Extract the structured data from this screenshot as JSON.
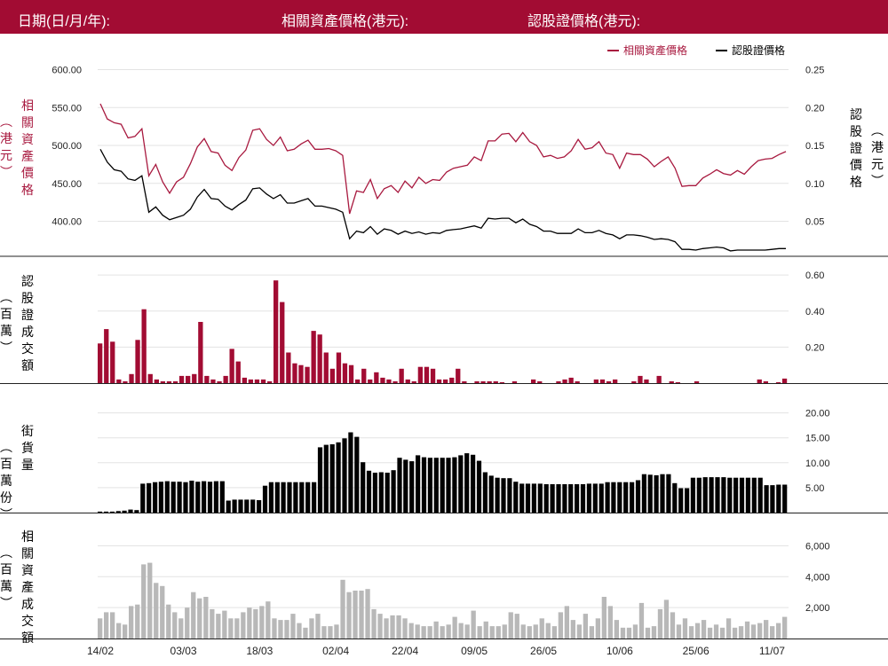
{
  "header": {
    "date_label": "日期(日/月/年):",
    "underlying_label": "相關資產價格(港元):",
    "warrant_label": "認股證價格(港元):"
  },
  "colors": {
    "brand": "#a20c33",
    "underlying": "#a8193f",
    "warrant": "#000000",
    "asset_turnover": "#b8b8b8",
    "grid": "#e3e3e3"
  },
  "chart_data": [
    {
      "type": "line",
      "panel": "price",
      "legend_position": "top-right",
      "grid": true,
      "x_tick_labels": [
        "14/02",
        "03/03",
        "18/03",
        "02/04",
        "22/04",
        "09/05",
        "26/05",
        "10/06",
        "25/06",
        "11/07"
      ],
      "x_tick_index": [
        0,
        12,
        23,
        34,
        44,
        54,
        64,
        75,
        86,
        97
      ],
      "series": [
        {
          "name": "相關資產價格",
          "axis": "left",
          "ylabel_chars": [
            "相",
            "關",
            "資",
            "產",
            "價",
            "格"
          ],
          "ylabel_unit": "︵港元︶",
          "ytick_labels": [
            "600.00",
            "550.00",
            "500.00",
            "450.00",
            "400.00"
          ],
          "ytick_values": [
            600,
            550,
            500,
            450,
            400
          ],
          "ylim": [
            355,
            610
          ],
          "values": [
            555,
            535,
            530,
            528,
            510,
            512,
            522,
            460,
            475,
            452,
            437,
            452,
            458,
            476,
            498,
            509,
            492,
            490,
            474,
            467,
            484,
            494,
            520,
            522,
            508,
            500,
            511,
            493,
            495,
            502,
            507,
            495,
            495,
            496,
            493,
            487,
            410,
            440,
            438,
            455,
            430,
            443,
            447,
            438,
            453,
            444,
            458,
            450,
            455,
            454,
            465,
            470,
            472,
            474,
            485,
            480,
            506,
            506,
            515,
            516,
            505,
            517,
            505,
            500,
            485,
            487,
            483,
            485,
            493,
            508,
            495,
            497,
            505,
            490,
            488,
            470,
            490,
            488,
            488,
            482,
            472,
            479,
            485,
            470,
            446,
            447,
            447,
            457,
            462,
            468,
            463,
            461,
            467,
            462,
            472,
            480,
            482,
            483,
            488,
            492
          ]
        },
        {
          "name": "認股證價格",
          "axis": "right",
          "ylabel_chars": [
            "認",
            "股",
            "證",
            "價",
            "格"
          ],
          "ylabel_unit": "︵港元︶",
          "ytick_labels": [
            "0.25",
            "0.20",
            "0.15",
            "0.10",
            "0.05"
          ],
          "ytick_values": [
            0.25,
            0.2,
            0.15,
            0.1,
            0.05
          ],
          "ylim": [
            0.005,
            0.26
          ],
          "values": [
            0.145,
            0.128,
            0.118,
            0.116,
            0.106,
            0.104,
            0.11,
            0.062,
            0.069,
            0.058,
            0.052,
            0.055,
            0.058,
            0.066,
            0.082,
            0.092,
            0.08,
            0.079,
            0.07,
            0.065,
            0.072,
            0.078,
            0.093,
            0.094,
            0.086,
            0.08,
            0.085,
            0.074,
            0.074,
            0.077,
            0.08,
            0.07,
            0.07,
            0.068,
            0.066,
            0.062,
            0.027,
            0.037,
            0.035,
            0.043,
            0.033,
            0.04,
            0.038,
            0.033,
            0.037,
            0.034,
            0.036,
            0.033,
            0.035,
            0.034,
            0.038,
            0.039,
            0.04,
            0.042,
            0.044,
            0.041,
            0.054,
            0.053,
            0.054,
            0.054,
            0.048,
            0.053,
            0.046,
            0.043,
            0.037,
            0.037,
            0.034,
            0.034,
            0.034,
            0.04,
            0.035,
            0.035,
            0.038,
            0.034,
            0.032,
            0.027,
            0.032,
            0.032,
            0.031,
            0.029,
            0.026,
            0.027,
            0.026,
            0.023,
            0.013,
            0.013,
            0.012,
            0.014,
            0.015,
            0.016,
            0.015,
            0.011,
            0.012,
            0.012,
            0.012,
            0.012,
            0.012,
            0.013,
            0.014,
            0.014
          ]
        }
      ]
    },
    {
      "type": "bar",
      "panel": "warrant_turnover",
      "grid": true,
      "ylabel_chars": [
        "認",
        "股",
        "證",
        "成",
        "交",
        "額"
      ],
      "ylabel_unit": "︵百萬︶",
      "ytick_labels": [
        "0.60",
        "0.40",
        "0.20"
      ],
      "ytick_values": [
        0.6,
        0.4,
        0.2
      ],
      "ylim": [
        0,
        0.65
      ],
      "values": [
        0.22,
        0.3,
        0.23,
        0.02,
        0.01,
        0.05,
        0.24,
        0.41,
        0.05,
        0.02,
        0.01,
        0.01,
        0.01,
        0.04,
        0.04,
        0.05,
        0.34,
        0.04,
        0.02,
        0.01,
        0.04,
        0.19,
        0.12,
        0.03,
        0.02,
        0.02,
        0.02,
        0.01,
        0.57,
        0.45,
        0.17,
        0.11,
        0.1,
        0.09,
        0.29,
        0.27,
        0.17,
        0.08,
        0.17,
        0.11,
        0.1,
        0.02,
        0.08,
        0.02,
        0.06,
        0.03,
        0.02,
        0.01,
        0.08,
        0.02,
        0.01,
        0.09,
        0.09,
        0.08,
        0.02,
        0.02,
        0.03,
        0.08,
        0.01,
        0.0,
        0.01,
        0.01,
        0.01,
        0.01,
        0.005,
        0.0,
        0.01,
        0.0,
        0.0,
        0.02,
        0.01,
        0.0,
        0.0,
        0.01,
        0.02,
        0.03,
        0.01,
        0.0,
        0.0,
        0.02,
        0.02,
        0.01,
        0.02,
        0.0,
        0.0,
        0.01,
        0.04,
        0.02,
        0.0,
        0.04,
        0.0,
        0.01,
        0.005,
        0.0,
        0.0,
        0.01,
        0.0,
        0.0,
        0.0,
        0.0,
        0.0,
        0.0,
        0.0,
        0.0,
        0.0,
        0.02,
        0.01,
        0.0,
        0.005,
        0.025
      ]
    },
    {
      "type": "bar",
      "panel": "outstanding",
      "grid": true,
      "ylabel_chars": [
        "街",
        "貨",
        "量"
      ],
      "ylabel_unit": "︵百萬份︶",
      "ytick_labels": [
        "20.00",
        "15.00",
        "10.00",
        "5.00"
      ],
      "ytick_values": [
        20,
        15,
        10,
        5
      ],
      "ylim": [
        0,
        21
      ],
      "values": [
        0.2,
        0.2,
        0.2,
        0.3,
        0.4,
        0.6,
        0.5,
        5.8,
        5.9,
        6.1,
        6.2,
        6.3,
        6.2,
        6.2,
        6.1,
        6.4,
        6.2,
        6.3,
        6.2,
        6.3,
        6.3,
        2.4,
        2.6,
        2.6,
        2.6,
        2.6,
        2.5,
        5.4,
        6.1,
        6.1,
        6.1,
        6.1,
        6.1,
        6.1,
        6.1,
        6.1,
        13.1,
        13.6,
        13.7,
        14.1,
        14.9,
        16.1,
        15.2,
        10.1,
        8.4,
        8.0,
        8.1,
        8.0,
        8.5,
        11.0,
        10.6,
        10.3,
        11.5,
        11.1,
        11.0,
        11.0,
        11.0,
        11.0,
        11.1,
        11.5,
        11.9,
        11.6,
        10.4,
        8.1,
        7.4,
        7.0,
        6.9,
        6.9,
        6.2,
        5.8,
        5.8,
        5.8,
        5.8,
        5.7,
        5.7,
        5.7,
        5.7,
        5.7,
        5.7,
        5.7,
        5.8,
        5.8,
        5.8,
        6.1,
        6.1,
        6.1,
        6.1,
        6.1,
        6.5,
        7.7,
        7.6,
        7.5,
        7.7,
        7.7,
        5.9,
        4.9,
        4.9,
        7.0,
        7.0,
        7.1,
        7.1,
        7.1,
        7.1,
        7.0,
        7.0,
        7.0,
        7.0,
        7.0,
        7.0,
        5.5,
        5.5,
        5.6,
        5.6
      ]
    },
    {
      "type": "bar",
      "panel": "asset_turnover",
      "grid": true,
      "ylabel_chars": [
        "相",
        "關",
        "資",
        "產",
        "成",
        "交",
        "額"
      ],
      "ylabel_unit": "︵百萬︶",
      "ytick_labels": [
        "6,000",
        "4,000",
        "2,000"
      ],
      "ytick_values": [
        6000,
        4000,
        2000
      ],
      "ylim": [
        0,
        6600
      ],
      "values": [
        1300,
        1700,
        1700,
        1000,
        900,
        2100,
        2200,
        4800,
        4900,
        3600,
        3400,
        2200,
        1700,
        1300,
        2000,
        3000,
        2600,
        2700,
        1900,
        1600,
        1800,
        1300,
        1300,
        1700,
        2000,
        1900,
        2100,
        2400,
        1300,
        1200,
        1200,
        1600,
        1000,
        700,
        1300,
        1600,
        800,
        800,
        900,
        3800,
        3000,
        3100,
        3100,
        3200,
        1900,
        1600,
        1300,
        1500,
        1500,
        1300,
        1000,
        900,
        800,
        800,
        1100,
        800,
        900,
        1400,
        1000,
        900,
        1800,
        800,
        1100,
        800,
        800,
        900,
        1700,
        1600,
        900,
        800,
        900,
        1300,
        1000,
        800,
        1700,
        2100,
        1200,
        900,
        1600,
        800,
        1300,
        2700,
        2100,
        1200,
        700,
        700,
        900,
        2300,
        700,
        800,
        1900,
        2500,
        1700,
        900,
        1300,
        800,
        1000,
        1200,
        700,
        900,
        700,
        1300,
        700,
        800,
        1100,
        900,
        1000,
        1200,
        800,
        1000,
        1400
      ]
    }
  ]
}
